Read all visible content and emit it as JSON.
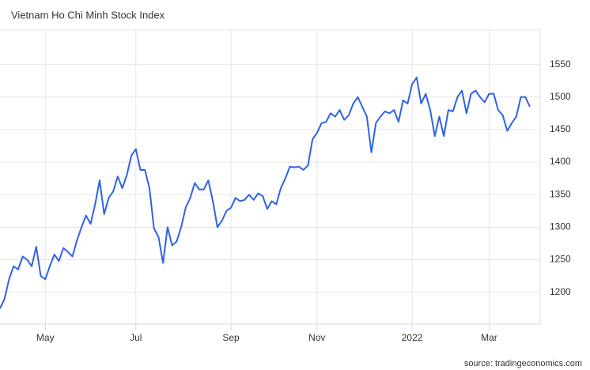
{
  "chart_data": {
    "type": "line",
    "title": "Vietnam Ho Chi Minh Stock Index",
    "source": "source: tradingeconomics.com",
    "categories": [
      null,
      null,
      null,
      null,
      null,
      null,
      null,
      null,
      null,
      null,
      "May",
      null,
      null,
      null,
      null,
      null,
      null,
      null,
      null,
      null,
      null,
      null,
      null,
      null,
      null,
      null,
      null,
      null,
      null,
      null,
      "Jul",
      null,
      null,
      null,
      null,
      null,
      null,
      null,
      null,
      null,
      null,
      null,
      null,
      null,
      null,
      null,
      null,
      null,
      null,
      null,
      null,
      "Sep",
      null,
      null,
      null,
      null,
      null,
      null,
      null,
      null,
      null,
      null,
      null,
      null,
      null,
      null,
      null,
      null,
      null,
      null,
      "Nov",
      null,
      null,
      null,
      null,
      null,
      null,
      null,
      null,
      null,
      null,
      null,
      null,
      null,
      null,
      null,
      null,
      null,
      null,
      null,
      null,
      "2022",
      null,
      null,
      null,
      null,
      null,
      null,
      null,
      null,
      null,
      null,
      null,
      null,
      null,
      null,
      null,
      null,
      "Mar",
      null,
      null,
      null,
      null,
      null,
      null,
      null,
      null,
      null
    ],
    "series": [
      {
        "name": "Ho Chi Minh Stock Index",
        "color": "#2f62e6",
        "values": [
          1175,
          1190,
          1220,
          1240,
          1235,
          1255,
          1250,
          1240,
          1270,
          1225,
          1220,
          1240,
          1258,
          1248,
          1268,
          1262,
          1255,
          1280,
          1300,
          1318,
          1305,
          1335,
          1372,
          1320,
          1345,
          1355,
          1378,
          1360,
          1380,
          1410,
          1420,
          1388,
          1388,
          1360,
          1298,
          1285,
          1245,
          1300,
          1272,
          1278,
          1300,
          1330,
          1345,
          1368,
          1358,
          1358,
          1372,
          1340,
          1300,
          1310,
          1325,
          1330,
          1345,
          1340,
          1342,
          1350,
          1342,
          1352,
          1348,
          1328,
          1340,
          1335,
          1360,
          1375,
          1393,
          1392,
          1393,
          1388,
          1395,
          1435,
          1445,
          1460,
          1462,
          1475,
          1470,
          1480,
          1465,
          1472,
          1490,
          1500,
          1485,
          1470,
          1415,
          1460,
          1470,
          1478,
          1475,
          1480,
          1462,
          1495,
          1490,
          1520,
          1530,
          1490,
          1505,
          1480,
          1440,
          1470,
          1440,
          1480,
          1478,
          1500,
          1510,
          1475,
          1505,
          1510,
          1500,
          1492,
          1505,
          1505,
          1480,
          1472,
          1448,
          1460,
          1470,
          1500,
          1500,
          1485
        ]
      }
    ],
    "ylim": [
      1151,
      1603
    ],
    "yticks": [
      1200,
      1250,
      1300,
      1350,
      1400,
      1450,
      1500,
      1550
    ],
    "grid": true
  }
}
